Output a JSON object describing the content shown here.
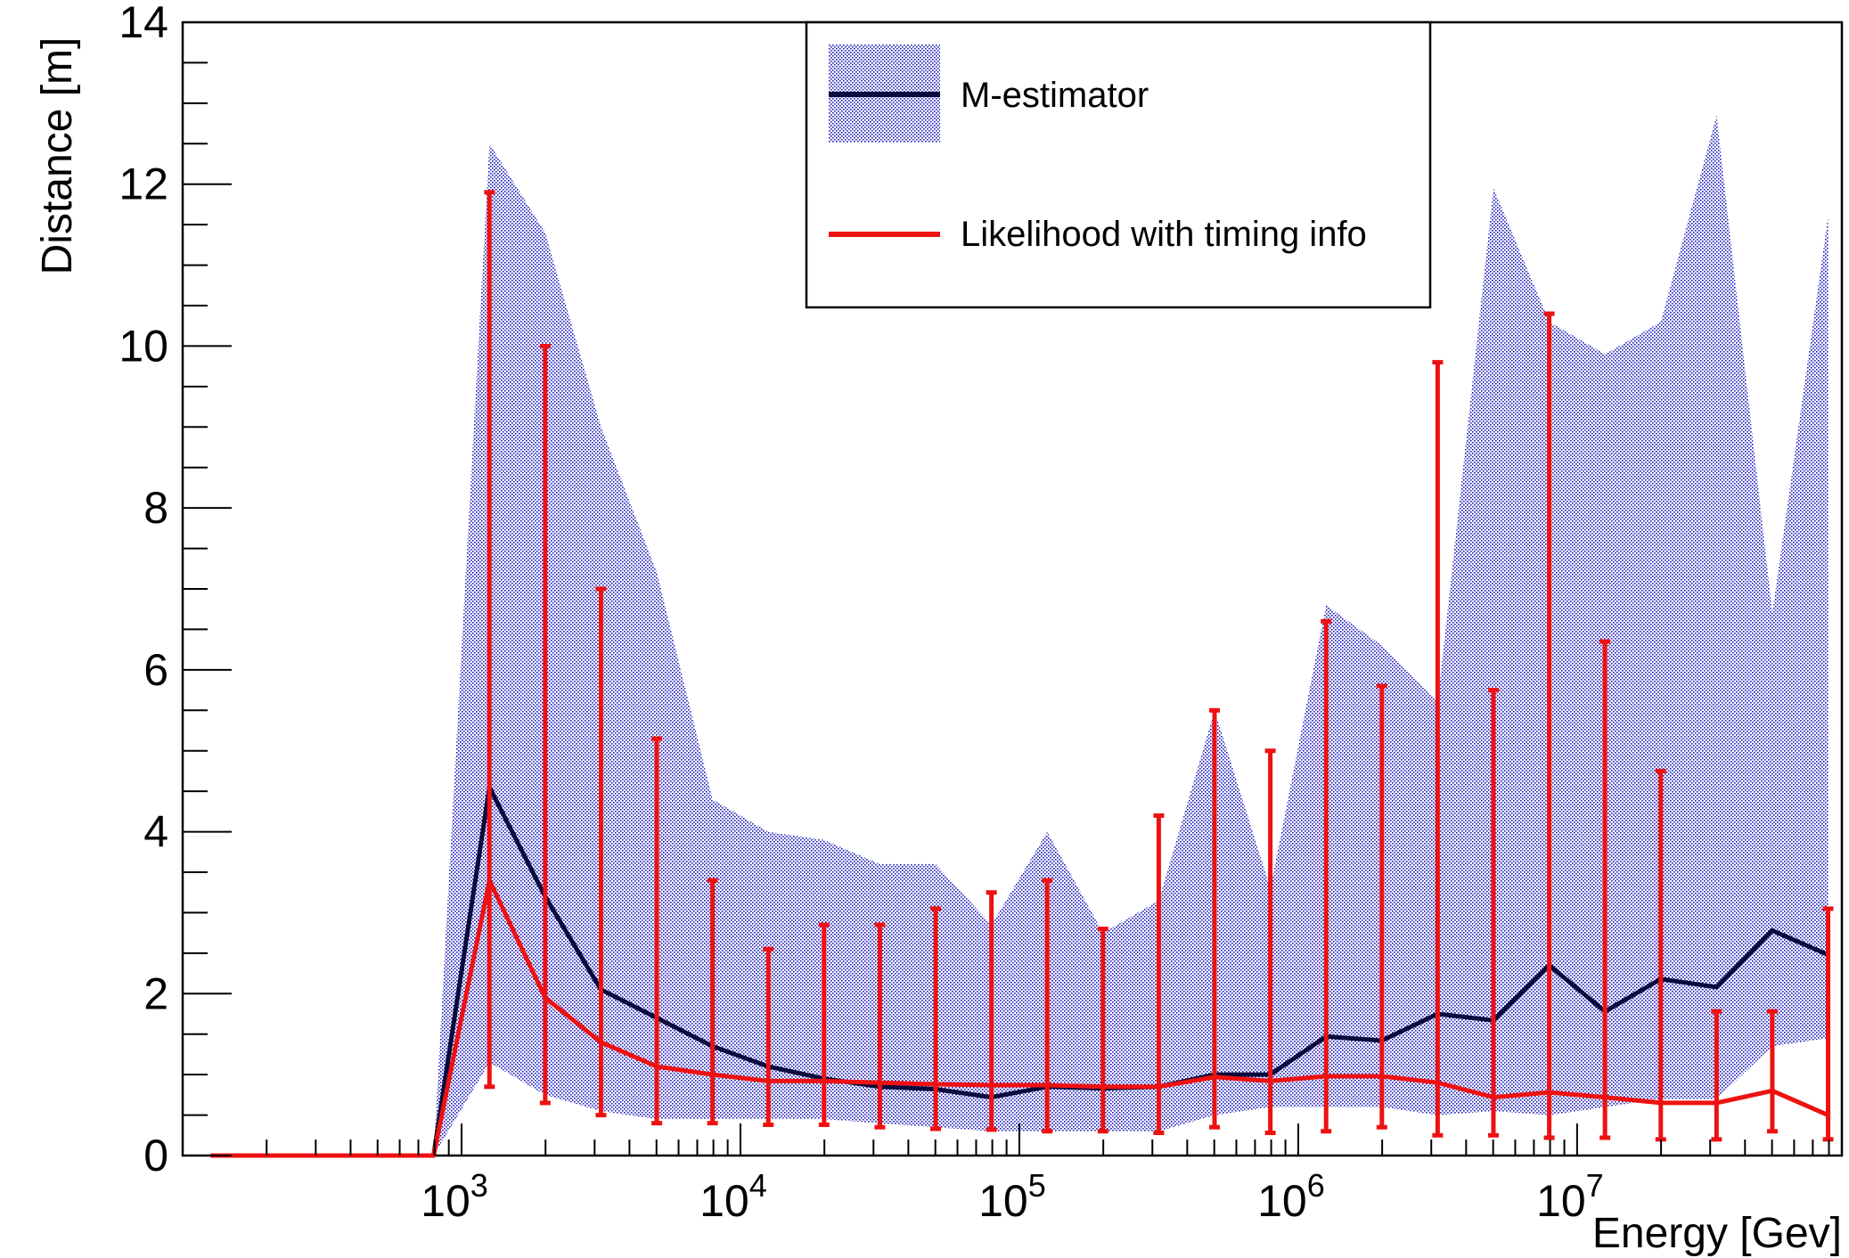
{
  "chart_data": {
    "type": "line",
    "title": "",
    "xlabel": "Energy [Gev]",
    "ylabel": "Distance [m]",
    "x_scale": "log",
    "xlim": [
      100,
      89000000
    ],
    "ylim": [
      0,
      14
    ],
    "x_tick_labels": [
      {
        "value": 1000,
        "base": "10",
        "exp": "3"
      },
      {
        "value": 10000,
        "base": "10",
        "exp": "4"
      },
      {
        "value": 100000,
        "base": "10",
        "exp": "5"
      },
      {
        "value": 1000000,
        "base": "10",
        "exp": "6"
      },
      {
        "value": 10000000,
        "base": "10",
        "exp": "7"
      }
    ],
    "y_ticks": [
      0,
      2,
      4,
      6,
      8,
      10,
      12,
      14
    ],
    "grid": false,
    "legend_position": "top-right",
    "colors": {
      "band": "#1a1ab8",
      "m_estimator": "#0a0a3c",
      "likelihood": "#ee1111"
    },
    "x": [
      126,
      200,
      316,
      501,
      794,
      1259,
      1995,
      3162,
      5012,
      7943,
      12589,
      19953,
      31623,
      50119,
      79433,
      125893,
      199526,
      316228,
      501187,
      794328,
      1258925,
      1995262,
      3162278,
      5011872,
      7943282,
      12589254,
      19952623,
      31622777,
      50118723,
      79432823
    ],
    "band": {
      "name": "M-estimator",
      "upper": [
        0,
        0,
        0,
        0,
        0,
        12.5,
        11.4,
        9.0,
        7.2,
        4.4,
        4.0,
        3.9,
        3.6,
        3.6,
        2.85,
        4.0,
        2.75,
        3.15,
        5.5,
        3.3,
        6.8,
        6.3,
        5.6,
        11.95,
        10.3,
        9.9,
        10.3,
        12.85,
        6.7,
        11.6
      ],
      "lower": [
        0,
        0,
        0,
        0,
        0,
        1.15,
        0.75,
        0.55,
        0.45,
        0.45,
        0.45,
        0.45,
        0.4,
        0.35,
        0.3,
        0.3,
        0.3,
        0.3,
        0.5,
        0.6,
        0.6,
        0.6,
        0.5,
        0.55,
        0.5,
        0.6,
        0.7,
        0.7,
        1.35,
        1.45
      ]
    },
    "series": [
      {
        "name": "M-estimator",
        "values": [
          0,
          0,
          0,
          0,
          0,
          4.55,
          3.2,
          2.05,
          1.7,
          1.35,
          1.1,
          0.95,
          0.85,
          0.82,
          0.72,
          0.85,
          0.83,
          0.85,
          1.0,
          1.0,
          1.47,
          1.42,
          1.75,
          1.67,
          2.35,
          1.78,
          2.18,
          2.08,
          2.78,
          2.48
        ]
      },
      {
        "name": "Likelihood with timing info",
        "values": [
          0,
          0,
          0,
          0,
          0,
          3.4,
          1.95,
          1.4,
          1.1,
          1.0,
          0.92,
          0.92,
          0.9,
          0.88,
          0.87,
          0.87,
          0.85,
          0.85,
          0.97,
          0.92,
          0.98,
          0.98,
          0.9,
          0.72,
          0.78,
          0.72,
          0.65,
          0.65,
          0.8,
          0.5
        ],
        "error_low": [
          null,
          null,
          null,
          null,
          null,
          0.85,
          0.65,
          0.5,
          0.4,
          0.4,
          0.38,
          0.38,
          0.35,
          0.33,
          0.32,
          0.3,
          0.3,
          0.28,
          0.35,
          0.28,
          0.3,
          0.35,
          0.25,
          0.25,
          0.22,
          0.22,
          0.2,
          0.2,
          0.3,
          0.2
        ],
        "error_high": [
          null,
          null,
          null,
          null,
          null,
          11.9,
          10.0,
          7.0,
          5.15,
          3.4,
          2.55,
          2.85,
          2.85,
          3.05,
          3.25,
          3.4,
          2.8,
          4.2,
          5.5,
          5.0,
          6.6,
          5.8,
          9.8,
          5.75,
          10.4,
          6.35,
          4.75,
          1.78,
          1.78,
          3.05
        ]
      }
    ],
    "legend": {
      "entries": [
        {
          "label": "M-estimator"
        },
        {
          "label": "Likelihood with timing info"
        }
      ]
    }
  }
}
